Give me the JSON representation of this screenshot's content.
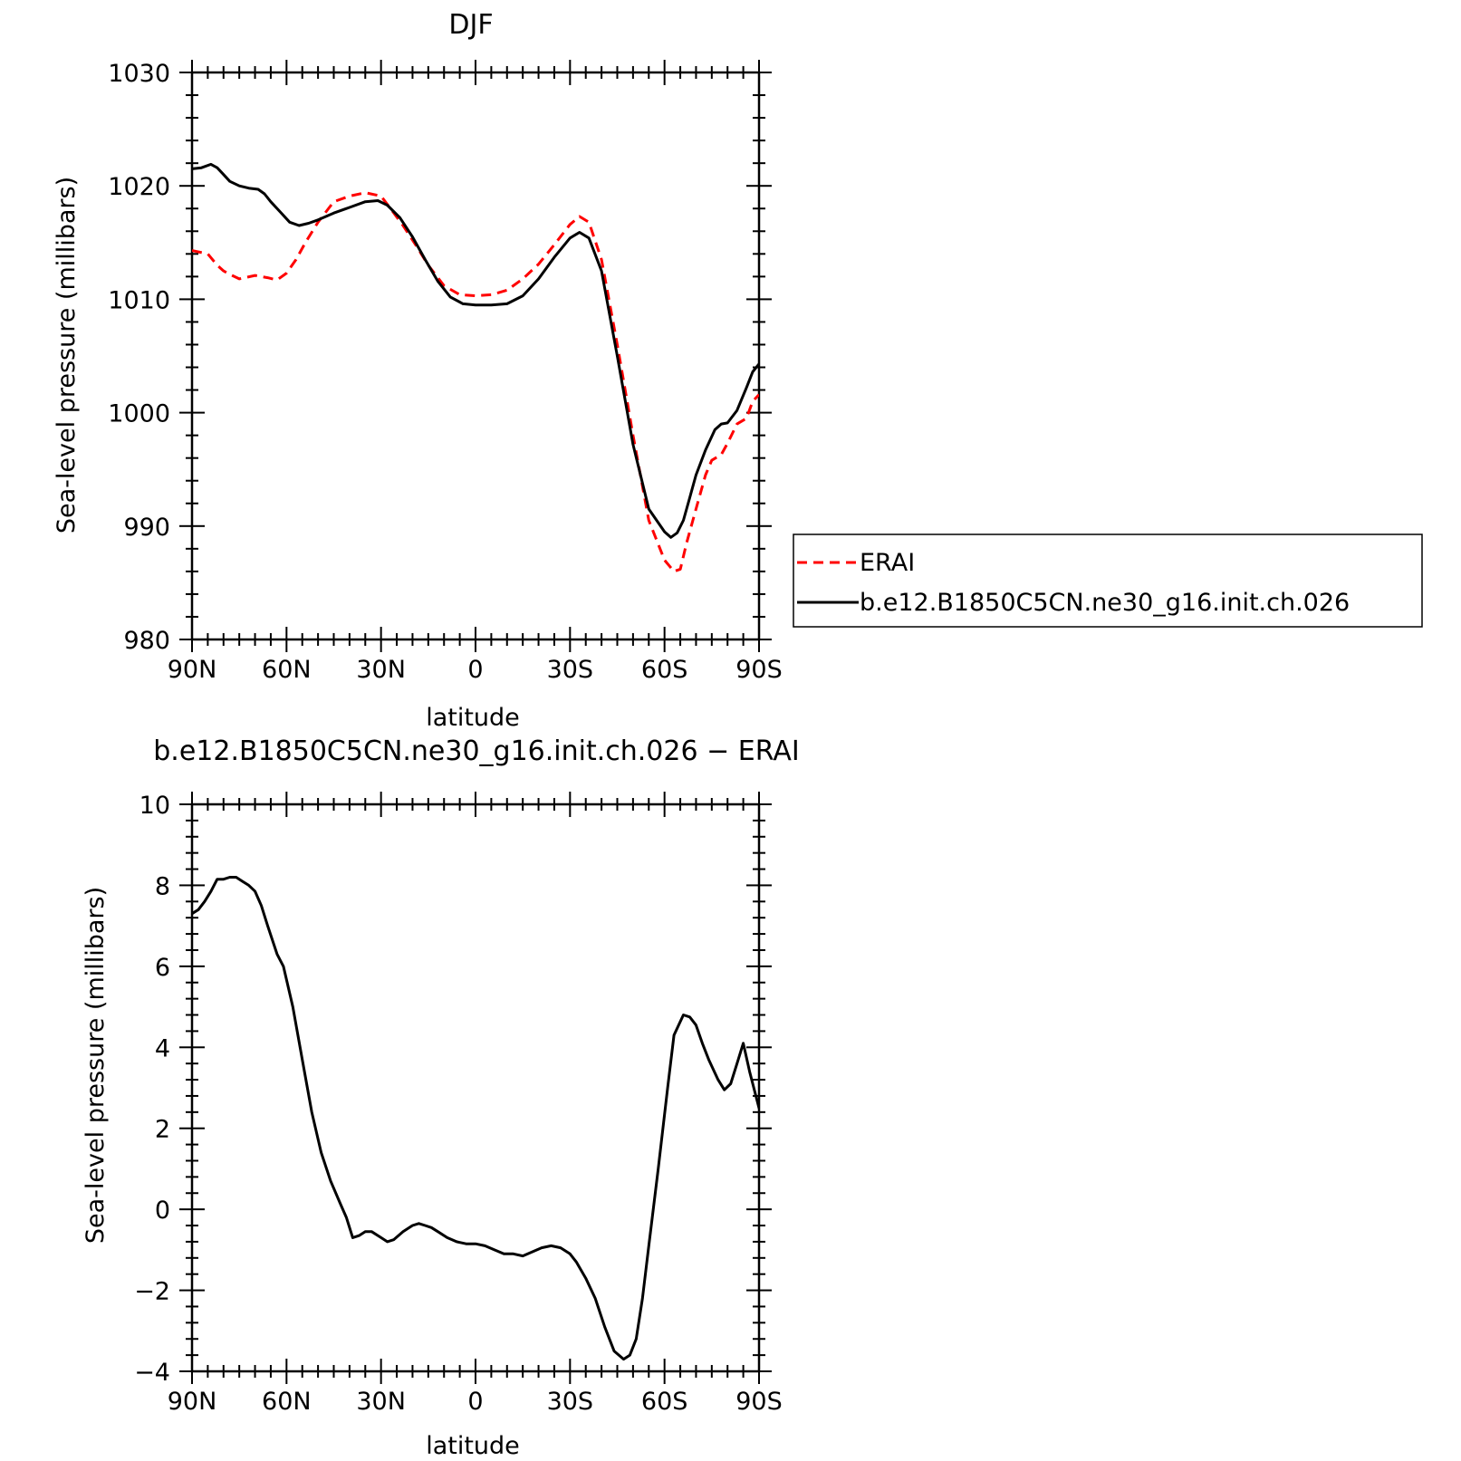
{
  "chart_data": [
    {
      "type": "line",
      "title": "DJF",
      "xlabel": "latitude",
      "ylabel": "Sea-level pressure (millibars)",
      "xlim": [
        90,
        -90
      ],
      "ylim": [
        980,
        1030
      ],
      "xticks": [
        90,
        60,
        30,
        0,
        -30,
        -60,
        -90
      ],
      "xtick_labels": [
        "90N",
        "60N",
        "30N",
        "0",
        "30S",
        "60S",
        "90S"
      ],
      "yticks": [
        980,
        990,
        1000,
        1010,
        1020,
        1030
      ],
      "ytick_labels": [
        "980",
        "990",
        "1000",
        "1010",
        "1020",
        "1030"
      ],
      "legend_position": "right",
      "series": [
        {
          "name": "ERAI",
          "color": "#ff0000",
          "dash": "dashed",
          "x": [
            90,
            85,
            82,
            80,
            78,
            75,
            70,
            66,
            63,
            60,
            57,
            54,
            50,
            45,
            40,
            35,
            30,
            27,
            23,
            19,
            15,
            10,
            5,
            0,
            -5,
            -10,
            -15,
            -20,
            -25,
            -30,
            -33,
            -36,
            -40,
            -45,
            -50,
            -55,
            -60,
            -63,
            -65,
            -67,
            -70,
            -73,
            -75,
            -78,
            -80,
            -83,
            -86,
            -88,
            -90
          ],
          "y": [
            1014.3,
            1014.0,
            1013.0,
            1012.5,
            1012.2,
            1011.8,
            1012.1,
            1011.9,
            1011.7,
            1012.3,
            1013.5,
            1015.0,
            1016.8,
            1018.6,
            1019.1,
            1019.4,
            1019.1,
            1018.0,
            1016.5,
            1014.8,
            1013.0,
            1011.2,
            1010.4,
            1010.3,
            1010.4,
            1010.8,
            1011.8,
            1013.1,
            1014.8,
            1016.6,
            1017.3,
            1016.8,
            1013.5,
            1006.0,
            998.0,
            990.5,
            987.0,
            986.0,
            986.2,
            988.5,
            991.5,
            994.5,
            995.8,
            996.3,
            997.3,
            999.0,
            999.5,
            1001.0,
            1001.6
          ]
        },
        {
          "name": "b.e12.B1850C5CN.ne30_g16.init.ch.026",
          "color": "#000000",
          "dash": "solid",
          "x": [
            90,
            87,
            84,
            82,
            80,
            78,
            75,
            72,
            69,
            67,
            65,
            62,
            59,
            56,
            53,
            50,
            45,
            40,
            35,
            31,
            28,
            24,
            20,
            16,
            12,
            8,
            4,
            0,
            -5,
            -10,
            -15,
            -20,
            -25,
            -30,
            -33,
            -36,
            -40,
            -45,
            -50,
            -55,
            -60,
            -62,
            -64,
            -66,
            -68,
            -70,
            -73,
            -76,
            -78,
            -80,
            -83,
            -86,
            -88,
            -90
          ],
          "y": [
            1021.5,
            1021.6,
            1021.9,
            1021.6,
            1021.0,
            1020.4,
            1020.0,
            1019.8,
            1019.7,
            1019.3,
            1018.6,
            1017.7,
            1016.8,
            1016.5,
            1016.7,
            1017.0,
            1017.6,
            1018.1,
            1018.6,
            1018.7,
            1018.3,
            1017.2,
            1015.5,
            1013.5,
            1011.6,
            1010.2,
            1009.6,
            1009.5,
            1009.5,
            1009.6,
            1010.3,
            1011.8,
            1013.7,
            1015.4,
            1015.9,
            1015.4,
            1012.5,
            1005.0,
            997.2,
            991.5,
            989.5,
            989.0,
            989.4,
            990.5,
            992.5,
            994.5,
            996.7,
            998.5,
            999.0,
            999.1,
            1000.2,
            1002.2,
            1003.6,
            1004.3
          ]
        }
      ]
    },
    {
      "type": "line",
      "title": "b.e12.B1850C5CN.ne30_g16.init.ch.026 − ERAI",
      "xlabel": "latitude",
      "ylabel": "Sea-level pressure (millibars)",
      "xlim": [
        90,
        -90
      ],
      "ylim": [
        -4,
        10
      ],
      "xticks": [
        90,
        60,
        30,
        0,
        -30,
        -60,
        -90
      ],
      "xtick_labels": [
        "90N",
        "60N",
        "30N",
        "0",
        "30S",
        "60S",
        "90S"
      ],
      "yticks": [
        -4,
        -2,
        0,
        2,
        4,
        6,
        8,
        10
      ],
      "ytick_labels": [
        "−4",
        "−2",
        "0",
        "2",
        "4",
        "6",
        "8",
        "10"
      ],
      "series": [
        {
          "color": "#000000",
          "dash": "solid",
          "x": [
            90,
            88,
            86,
            84,
            82,
            80,
            78,
            76,
            74,
            72,
            70,
            68,
            66,
            63,
            61,
            58,
            55,
            52,
            49,
            46,
            43,
            41,
            39,
            37,
            35,
            33,
            30,
            28,
            26,
            23,
            20,
            18,
            16,
            14,
            12,
            9,
            6,
            3,
            0,
            -3,
            -6,
            -9,
            -12,
            -15,
            -18,
            -21,
            -24,
            -27,
            -30,
            -32,
            -35,
            -38,
            -41,
            -44,
            -47,
            -49,
            -51,
            -53,
            -55,
            -58,
            -61,
            -63,
            -66,
            -68,
            -70,
            -72,
            -74,
            -77,
            -79,
            -81,
            -83,
            -85,
            -87,
            -90
          ],
          "y": [
            7.3,
            7.4,
            7.6,
            7.85,
            8.15,
            8.15,
            8.2,
            8.2,
            8.1,
            8.0,
            7.85,
            7.5,
            7.0,
            6.3,
            6.0,
            5.0,
            3.7,
            2.4,
            1.4,
            0.7,
            0.15,
            -0.2,
            -0.7,
            -0.65,
            -0.55,
            -0.55,
            -0.7,
            -0.8,
            -0.75,
            -0.55,
            -0.4,
            -0.35,
            -0.4,
            -0.45,
            -0.55,
            -0.7,
            -0.8,
            -0.85,
            -0.85,
            -0.9,
            -1.0,
            -1.1,
            -1.1,
            -1.15,
            -1.05,
            -0.95,
            -0.9,
            -0.95,
            -1.1,
            -1.3,
            -1.7,
            -2.2,
            -2.9,
            -3.5,
            -3.7,
            -3.6,
            -3.2,
            -2.2,
            -0.9,
            1.0,
            3.0,
            4.3,
            4.8,
            4.75,
            4.55,
            4.1,
            3.7,
            3.2,
            2.95,
            3.1,
            3.6,
            4.1,
            3.4,
            2.5
          ]
        }
      ]
    }
  ]
}
